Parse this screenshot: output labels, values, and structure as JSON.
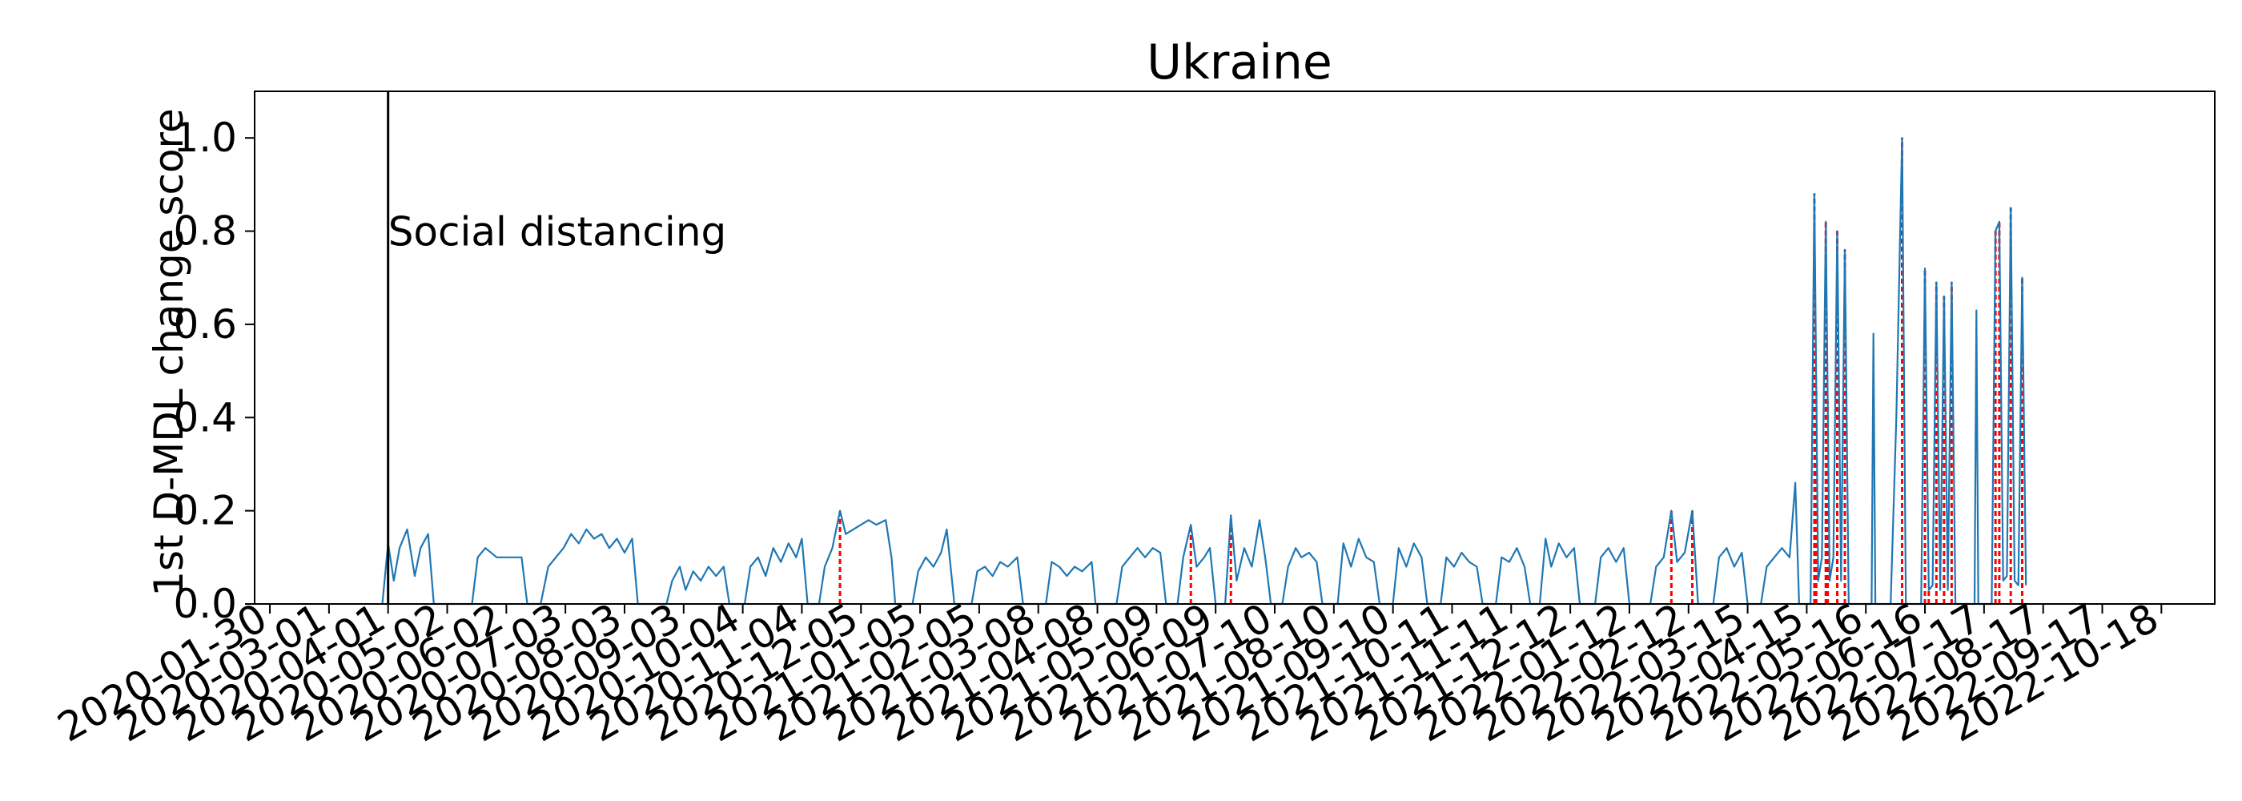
{
  "chart_data": {
    "type": "line",
    "title": "Ukraine",
    "xlabel": "",
    "ylabel": "1st D-MDL change score",
    "ylim": [
      0,
      1.1
    ],
    "xlim": [
      "2020-01-22",
      "2022-11-15"
    ],
    "y_ticks": [
      0.0,
      0.2,
      0.4,
      0.6,
      0.8,
      1.0
    ],
    "y_tick_labels": [
      "0.0",
      "0.2",
      "0.4",
      "0.6",
      "0.8",
      "1.0"
    ],
    "x_ticks": [
      "2020-01-30",
      "2020-03-01",
      "2020-04-01",
      "2020-05-02",
      "2020-06-02",
      "2020-07-03",
      "2020-08-03",
      "2020-09-03",
      "2020-10-04",
      "2020-11-04",
      "2020-12-05",
      "2021-01-05",
      "2021-02-05",
      "2021-03-08",
      "2021-04-08",
      "2021-05-09",
      "2021-06-09",
      "2021-07-10",
      "2021-08-10",
      "2021-09-10",
      "2021-10-11",
      "2021-11-11",
      "2021-12-12",
      "2022-01-12",
      "2022-02-12",
      "2022-03-15",
      "2022-04-15",
      "2022-05-16",
      "2022-06-16",
      "2022-07-17",
      "2022-08-17",
      "2022-09-17",
      "2022-10-18"
    ],
    "grid": false,
    "annotations": [
      {
        "date": "2020-04-01",
        "text": "Social distancing",
        "style": "vertical black line"
      }
    ],
    "series": [
      {
        "color": "#1f77b4",
        "points": [
          [
            "2020-03-29",
            0.0
          ],
          [
            "2020-04-01",
            0.13
          ],
          [
            "2020-04-04",
            0.05
          ],
          [
            "2020-04-07",
            0.12
          ],
          [
            "2020-04-11",
            0.16
          ],
          [
            "2020-04-15",
            0.06
          ],
          [
            "2020-04-18",
            0.12
          ],
          [
            "2020-04-22",
            0.15
          ],
          [
            "2020-04-25",
            0.0
          ],
          [
            "2020-05-15",
            0.0
          ],
          [
            "2020-05-18",
            0.1
          ],
          [
            "2020-05-22",
            0.12
          ],
          [
            "2020-05-28",
            0.1
          ],
          [
            "2020-06-04",
            0.1
          ],
          [
            "2020-06-10",
            0.1
          ],
          [
            "2020-06-13",
            0.0
          ],
          [
            "2020-06-20",
            0.0
          ],
          [
            "2020-06-24",
            0.08
          ],
          [
            "2020-06-28",
            0.1
          ],
          [
            "2020-07-02",
            0.12
          ],
          [
            "2020-07-06",
            0.15
          ],
          [
            "2020-07-10",
            0.13
          ],
          [
            "2020-07-14",
            0.16
          ],
          [
            "2020-07-18",
            0.14
          ],
          [
            "2020-07-22",
            0.15
          ],
          [
            "2020-07-26",
            0.12
          ],
          [
            "2020-07-30",
            0.14
          ],
          [
            "2020-08-03",
            0.11
          ],
          [
            "2020-08-07",
            0.14
          ],
          [
            "2020-08-10",
            0.0
          ],
          [
            "2020-08-25",
            0.0
          ],
          [
            "2020-08-28",
            0.05
          ],
          [
            "2020-09-01",
            0.08
          ],
          [
            "2020-09-04",
            0.03
          ],
          [
            "2020-09-08",
            0.07
          ],
          [
            "2020-09-12",
            0.05
          ],
          [
            "2020-09-16",
            0.08
          ],
          [
            "2020-09-20",
            0.06
          ],
          [
            "2020-09-24",
            0.08
          ],
          [
            "2020-09-27",
            0.0
          ],
          [
            "2020-10-05",
            0.0
          ],
          [
            "2020-10-08",
            0.08
          ],
          [
            "2020-10-12",
            0.1
          ],
          [
            "2020-10-16",
            0.06
          ],
          [
            "2020-10-20",
            0.12
          ],
          [
            "2020-10-24",
            0.09
          ],
          [
            "2020-10-28",
            0.13
          ],
          [
            "2020-11-01",
            0.1
          ],
          [
            "2020-11-04",
            0.14
          ],
          [
            "2020-11-07",
            0.0
          ],
          [
            "2020-11-13",
            0.0
          ],
          [
            "2020-11-16",
            0.08
          ],
          [
            "2020-11-20",
            0.12
          ],
          [
            "2020-11-24",
            0.2
          ],
          [
            "2020-11-27",
            0.15
          ],
          [
            "2020-12-01",
            0.16
          ],
          [
            "2020-12-05",
            0.17
          ],
          [
            "2020-12-09",
            0.18
          ],
          [
            "2020-12-13",
            0.17
          ],
          [
            "2020-12-18",
            0.18
          ],
          [
            "2020-12-21",
            0.1
          ],
          [
            "2020-12-23",
            0.0
          ],
          [
            "2021-01-01",
            0.0
          ],
          [
            "2021-01-04",
            0.07
          ],
          [
            "2021-01-08",
            0.1
          ],
          [
            "2021-01-12",
            0.08
          ],
          [
            "2021-01-16",
            0.11
          ],
          [
            "2021-01-19",
            0.16
          ],
          [
            "2021-01-21",
            0.08
          ],
          [
            "2021-01-23",
            0.0
          ],
          [
            "2021-02-01",
            0.0
          ],
          [
            "2021-02-04",
            0.07
          ],
          [
            "2021-02-08",
            0.08
          ],
          [
            "2021-02-12",
            0.06
          ],
          [
            "2021-02-16",
            0.09
          ],
          [
            "2021-02-20",
            0.08
          ],
          [
            "2021-02-25",
            0.1
          ],
          [
            "2021-02-28",
            0.0
          ],
          [
            "2021-03-12",
            0.0
          ],
          [
            "2021-03-15",
            0.09
          ],
          [
            "2021-03-19",
            0.08
          ],
          [
            "2021-03-23",
            0.06
          ],
          [
            "2021-03-27",
            0.08
          ],
          [
            "2021-03-31",
            0.07
          ],
          [
            "2021-04-05",
            0.09
          ],
          [
            "2021-04-07",
            0.0
          ],
          [
            "2021-04-18",
            0.0
          ],
          [
            "2021-04-21",
            0.08
          ],
          [
            "2021-04-25",
            0.1
          ],
          [
            "2021-04-29",
            0.12
          ],
          [
            "2021-05-03",
            0.1
          ],
          [
            "2021-05-07",
            0.12
          ],
          [
            "2021-05-11",
            0.11
          ],
          [
            "2021-05-14",
            0.0
          ],
          [
            "2021-05-20",
            0.0
          ],
          [
            "2021-05-23",
            0.1
          ],
          [
            "2021-05-27",
            0.17
          ],
          [
            "2021-05-30",
            0.08
          ],
          [
            "2021-06-03",
            0.1
          ],
          [
            "2021-06-06",
            0.12
          ],
          [
            "2021-06-09",
            0.0
          ],
          [
            "2021-06-14",
            0.0
          ],
          [
            "2021-06-17",
            0.19
          ],
          [
            "2021-06-20",
            0.05
          ],
          [
            "2021-06-24",
            0.12
          ],
          [
            "2021-06-28",
            0.08
          ],
          [
            "2021-07-02",
            0.18
          ],
          [
            "2021-07-05",
            0.1
          ],
          [
            "2021-07-08",
            0.0
          ],
          [
            "2021-07-14",
            0.0
          ],
          [
            "2021-07-17",
            0.08
          ],
          [
            "2021-07-21",
            0.12
          ],
          [
            "2021-07-24",
            0.1
          ],
          [
            "2021-07-28",
            0.11
          ],
          [
            "2021-08-01",
            0.09
          ],
          [
            "2021-08-04",
            0.0
          ],
          [
            "2021-08-12",
            0.0
          ],
          [
            "2021-08-15",
            0.13
          ],
          [
            "2021-08-19",
            0.08
          ],
          [
            "2021-08-23",
            0.14
          ],
          [
            "2021-08-27",
            0.1
          ],
          [
            "2021-08-31",
            0.09
          ],
          [
            "2021-09-03",
            0.0
          ],
          [
            "2021-09-10",
            0.0
          ],
          [
            "2021-09-13",
            0.12
          ],
          [
            "2021-09-17",
            0.08
          ],
          [
            "2021-09-21",
            0.13
          ],
          [
            "2021-09-25",
            0.1
          ],
          [
            "2021-09-28",
            0.0
          ],
          [
            "2021-10-05",
            0.0
          ],
          [
            "2021-10-08",
            0.1
          ],
          [
            "2021-10-12",
            0.08
          ],
          [
            "2021-10-16",
            0.11
          ],
          [
            "2021-10-20",
            0.09
          ],
          [
            "2021-10-24",
            0.08
          ],
          [
            "2021-10-27",
            0.0
          ],
          [
            "2021-11-03",
            0.0
          ],
          [
            "2021-11-06",
            0.1
          ],
          [
            "2021-11-10",
            0.09
          ],
          [
            "2021-11-14",
            0.12
          ],
          [
            "2021-11-18",
            0.08
          ],
          [
            "2021-11-21",
            0.0
          ],
          [
            "2021-11-26",
            0.0
          ],
          [
            "2021-11-29",
            0.14
          ],
          [
            "2021-12-02",
            0.08
          ],
          [
            "2021-12-06",
            0.13
          ],
          [
            "2021-12-10",
            0.1
          ],
          [
            "2021-12-14",
            0.12
          ],
          [
            "2021-12-17",
            0.0
          ],
          [
            "2021-12-25",
            0.0
          ],
          [
            "2021-12-28",
            0.1
          ],
          [
            "2022-01-01",
            0.12
          ],
          [
            "2022-01-05",
            0.09
          ],
          [
            "2022-01-09",
            0.12
          ],
          [
            "2022-01-12",
            0.0
          ],
          [
            "2022-01-23",
            0.0
          ],
          [
            "2022-01-26",
            0.08
          ],
          [
            "2022-01-30",
            0.1
          ],
          [
            "2022-02-03",
            0.2
          ],
          [
            "2022-02-06",
            0.09
          ],
          [
            "2022-02-10",
            0.11
          ],
          [
            "2022-02-14",
            0.2
          ],
          [
            "2022-02-17",
            0.0
          ],
          [
            "2022-02-25",
            0.0
          ],
          [
            "2022-02-28",
            0.1
          ],
          [
            "2022-03-04",
            0.12
          ],
          [
            "2022-03-08",
            0.08
          ],
          [
            "2022-03-12",
            0.11
          ],
          [
            "2022-03-15",
            0.0
          ],
          [
            "2022-03-22",
            0.0
          ],
          [
            "2022-03-25",
            0.08
          ],
          [
            "2022-03-29",
            0.1
          ],
          [
            "2022-04-02",
            0.12
          ],
          [
            "2022-04-06",
            0.1
          ],
          [
            "2022-04-09",
            0.26
          ],
          [
            "2022-04-11",
            0.0
          ],
          [
            "2022-04-17",
            0.0
          ],
          [
            "2022-04-19",
            0.88
          ],
          [
            "2022-04-21",
            0.05
          ],
          [
            "2022-04-23",
            0.1
          ],
          [
            "2022-04-25",
            0.82
          ],
          [
            "2022-04-27",
            0.05
          ],
          [
            "2022-04-29",
            0.1
          ],
          [
            "2022-05-01",
            0.8
          ],
          [
            "2022-05-03",
            0.05
          ],
          [
            "2022-05-05",
            0.76
          ],
          [
            "2022-05-07",
            0.0
          ],
          [
            "2022-05-19",
            0.0
          ],
          [
            "2022-05-20",
            0.58
          ],
          [
            "2022-05-21",
            0.0
          ],
          [
            "2022-05-29",
            0.0
          ],
          [
            "2022-06-01",
            0.4
          ],
          [
            "2022-06-04",
            1.0
          ],
          [
            "2022-06-06",
            0.0
          ],
          [
            "2022-06-14",
            0.0
          ],
          [
            "2022-06-16",
            0.72
          ],
          [
            "2022-06-18",
            0.03
          ],
          [
            "2022-06-20",
            0.04
          ],
          [
            "2022-06-22",
            0.69
          ],
          [
            "2022-06-24",
            0.03
          ],
          [
            "2022-06-26",
            0.66
          ],
          [
            "2022-06-28",
            0.03
          ],
          [
            "2022-06-30",
            0.69
          ],
          [
            "2022-07-02",
            0.0
          ],
          [
            "2022-07-12",
            0.0
          ],
          [
            "2022-07-13",
            0.63
          ],
          [
            "2022-07-14",
            0.0
          ],
          [
            "2022-07-21",
            0.0
          ],
          [
            "2022-07-23",
            0.8
          ],
          [
            "2022-07-25",
            0.82
          ],
          [
            "2022-07-27",
            0.05
          ],
          [
            "2022-07-29",
            0.06
          ],
          [
            "2022-07-31",
            0.85
          ],
          [
            "2022-08-02",
            0.05
          ],
          [
            "2022-08-04",
            0.04
          ],
          [
            "2022-08-06",
            0.7
          ],
          [
            "2022-08-08",
            0.04
          ]
        ]
      }
    ],
    "change_points_dates": [
      "2020-11-24",
      "2021-05-27",
      "2021-06-17",
      "2022-02-03",
      "2022-02-14",
      "2022-04-19",
      "2022-04-20",
      "2022-04-25",
      "2022-04-26",
      "2022-05-01",
      "2022-05-05",
      "2022-06-04",
      "2022-06-16",
      "2022-06-18",
      "2022-06-22",
      "2022-06-26",
      "2022-06-30",
      "2022-07-23",
      "2022-07-25",
      "2022-07-31",
      "2022-08-06"
    ]
  }
}
